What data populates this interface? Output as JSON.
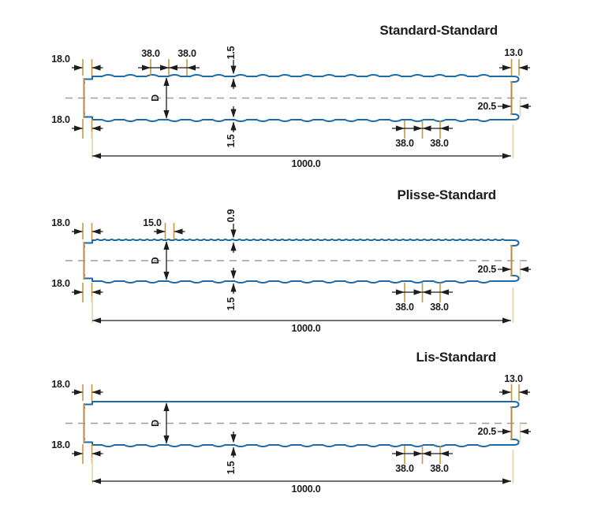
{
  "colors": {
    "profile_blue": "#1c6aa8",
    "edge_tan": "#b98a42",
    "tick_tan": "#c8973f",
    "extension_pale_tan": "#e9d8ae",
    "dimension_black": "#1d1d1d",
    "centerline_gray": "#9e9e9e",
    "background": "#ffffff"
  },
  "panels": [
    {
      "title": "Standard-Standard",
      "labels": {
        "top_left_width": "18.0",
        "top_rib_pitch_1": "38.0",
        "top_rib_pitch_2": "38.0",
        "top_sheet_thickness": "1.5",
        "top_right_width": "13.0",
        "core_depth": "D",
        "right_joint_width": "20.5",
        "bottom_left_width": "18.0",
        "bottom_sheet_thickness": "1.5",
        "bottom_rib_pitch_1": "38.0",
        "bottom_rib_pitch_2": "38.0",
        "overall_width": "1000.0"
      }
    },
    {
      "title": "Plisse-Standard",
      "labels": {
        "top_left_width": "18.0",
        "top_rib_pitch": "15.0",
        "top_sheet_thickness": "0.9",
        "core_depth": "D",
        "right_joint_width": "20.5",
        "bottom_left_width": "18.0",
        "bottom_sheet_thickness": "1.5",
        "bottom_rib_pitch_1": "38.0",
        "bottom_rib_pitch_2": "38.0",
        "overall_width": "1000.0"
      }
    },
    {
      "title": "Lis-Standard",
      "labels": {
        "top_left_width": "18.0",
        "top_right_width": "13.0",
        "core_depth": "D",
        "right_joint_width": "20.5",
        "bottom_left_width": "18.0",
        "bottom_sheet_thickness": "1.5",
        "bottom_rib_pitch_1": "38.0",
        "bottom_rib_pitch_2": "38.0",
        "overall_width": "1000.0"
      }
    }
  ]
}
